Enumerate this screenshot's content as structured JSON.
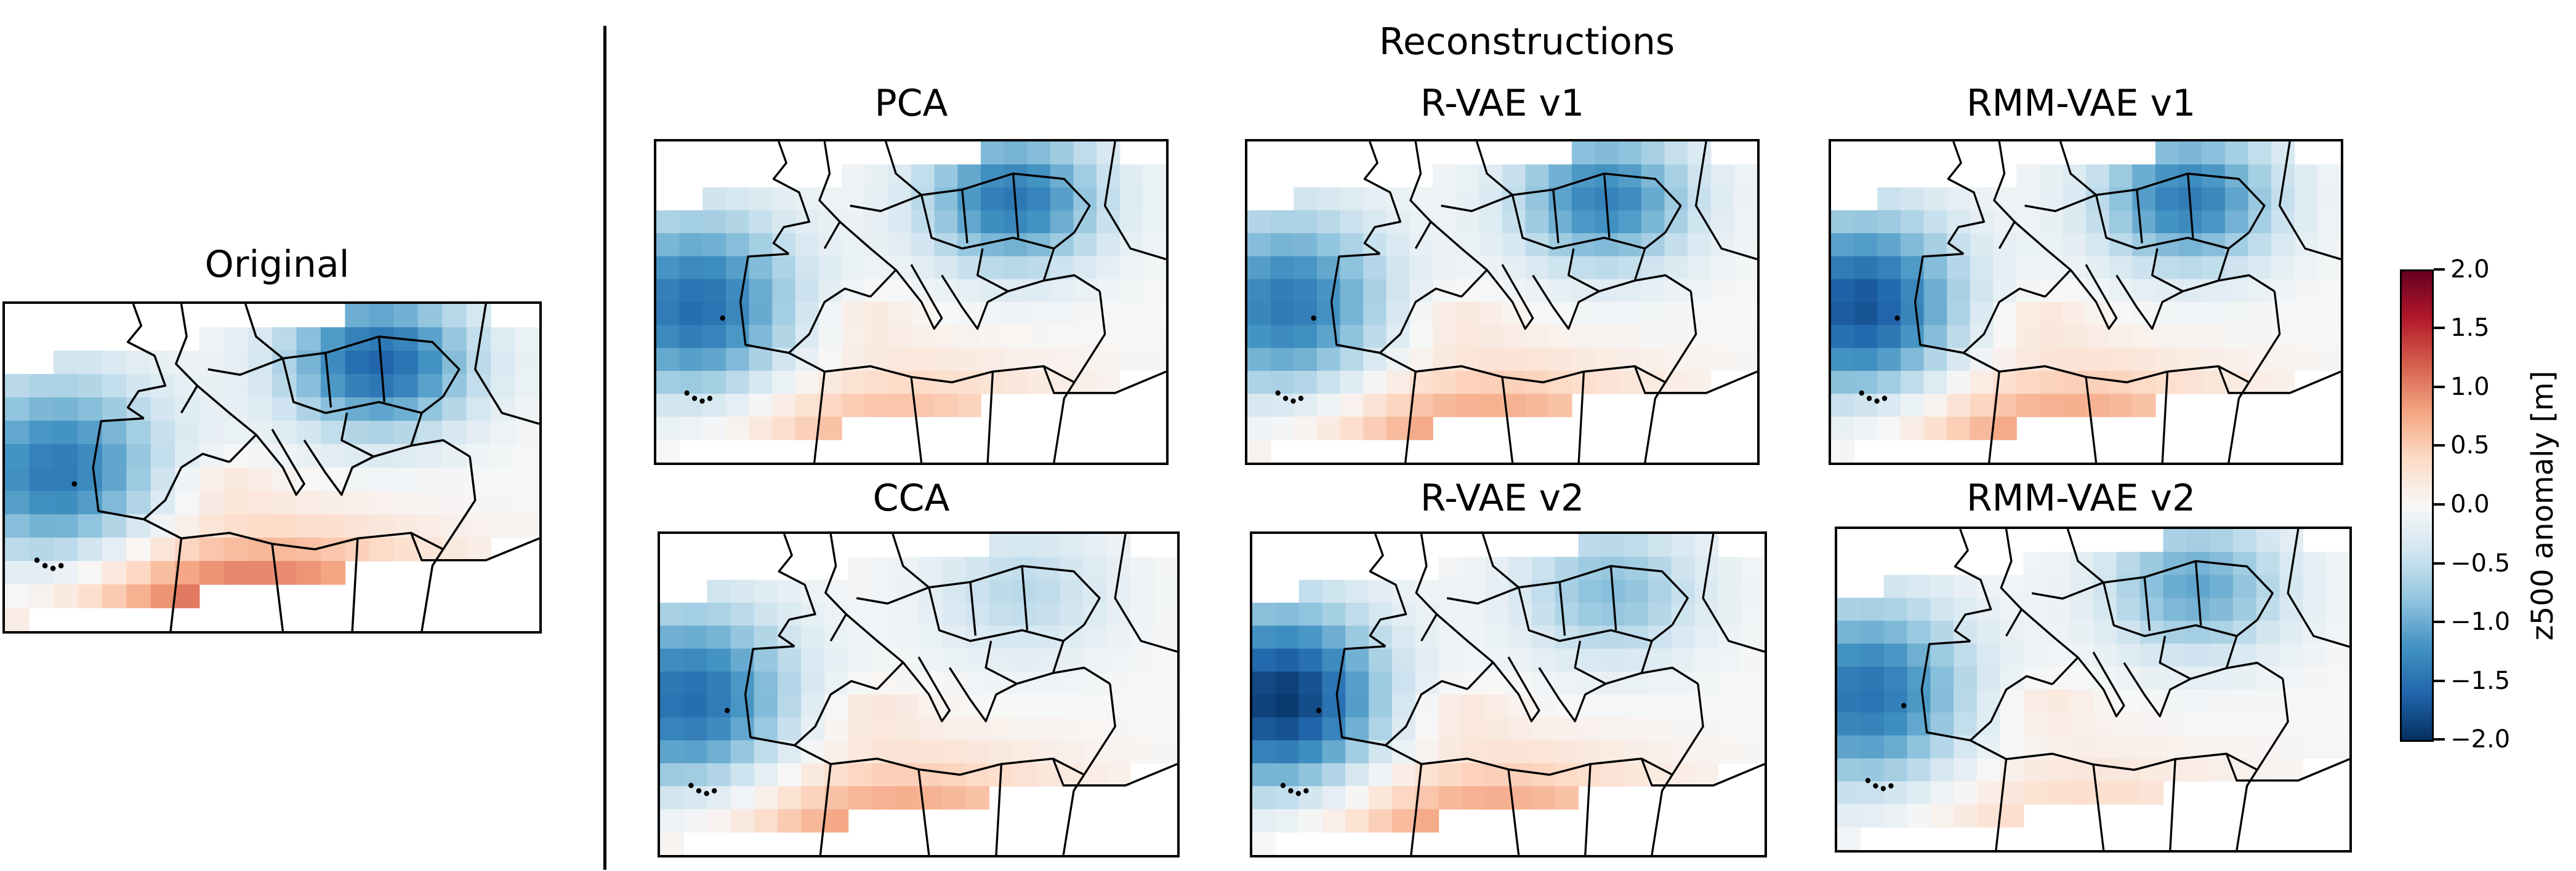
{
  "figure": {
    "original_title": "Original",
    "reconstructions_title": "Reconstructions"
  },
  "panels": [
    {
      "title": "Original",
      "z500_anomaly": "dipole: negative west Atlantic and northeast Europe, positive North Africa"
    },
    {
      "title": "PCA",
      "z500_anomaly": "negative west and northeast, positive south"
    },
    {
      "title": "R-VAE v1",
      "z500_anomaly": "negative west and northeast, positive south"
    },
    {
      "title": "RMM-VAE v1",
      "z500_anomaly": "strong negative west and northeast, positive south"
    },
    {
      "title": "CCA",
      "z500_anomaly": "negative west, positive south"
    },
    {
      "title": "R-VAE v2",
      "z500_anomaly": "strong negative west, positive south"
    },
    {
      "title": "RMM-VAE v2",
      "z500_anomaly": "negative west and east, weak positive south"
    }
  ],
  "colorbar": {
    "label": "z500 anomaly [m]",
    "ticks": [
      "2.0",
      "1.5",
      "1.0",
      "0.5",
      "0.0",
      "−0.5",
      "−1.0",
      "−1.5",
      "−2.0"
    ],
    "range": [
      -2.0,
      2.0
    ],
    "colormap": "RdBu_r",
    "colors": [
      "#67001f",
      "#b2182b",
      "#d6604d",
      "#f4a582",
      "#fddbc7",
      "#f7f7f7",
      "#d1e5f0",
      "#92c5de",
      "#4393c3",
      "#2166ac",
      "#053061"
    ]
  }
}
